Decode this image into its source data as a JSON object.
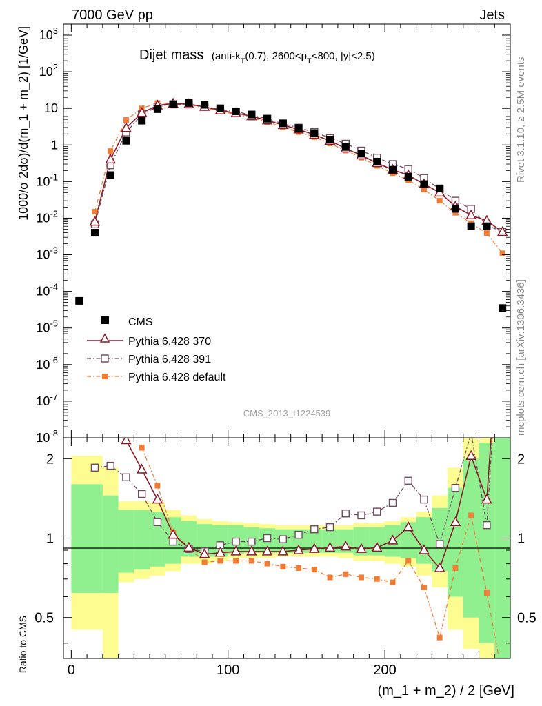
{
  "header": {
    "left": "7000 GeV pp",
    "right": "Jets"
  },
  "side_labels": {
    "rivet": "Rivet 3.1.10, ≥ 2.5M events",
    "mcplots": "mcplots.cern.ch [arXiv:1306.3436]"
  },
  "watermark": "CMS_2013_I1224539",
  "colors": {
    "cms": "#000000",
    "p370": "#8b1a2b",
    "p391": "#6e4a5e",
    "pdefault": "#f47b34",
    "band_inner": "#90f090",
    "band_outer": "#fcfc90"
  },
  "chart_data": [
    {
      "type": "scatter",
      "title": "Dijet mass",
      "title_note": "(anti-k_T(0.7), 2600<p_T<800, |y|<2.5)",
      "ylabel": "1000/σ 2dσ)/d(m_1 + m_2) [1/GeV]",
      "xlabel": "",
      "xlim": [
        -5,
        280
      ],
      "ylim": [
        1e-08,
        2000
      ],
      "log_y": true,
      "y_ticks": [
        "10^3",
        "10^2",
        "10",
        "1",
        "10^-1",
        "10^-2",
        "10^-3",
        "10^-4",
        "10^-5",
        "10^-6",
        "10^-7",
        "10^-8"
      ],
      "legend": [
        "CMS",
        "Pythia 6.428 370",
        "Pythia 6.428 391",
        "Pythia 6.428 default"
      ],
      "legend_position": "lower-left",
      "x": [
        5,
        15,
        25,
        35,
        45,
        55,
        65,
        75,
        85,
        95,
        105,
        115,
        125,
        135,
        145,
        155,
        165,
        175,
        185,
        195,
        205,
        215,
        225,
        235,
        245,
        255,
        265,
        275
      ],
      "series": [
        {
          "name": "CMS",
          "values": [
            5.5e-05,
            0.004,
            0.15,
            1.3,
            4.6,
            9.5,
            13,
            14,
            12.5,
            10,
            8.3,
            6.8,
            5.2,
            3.9,
            2.9,
            2.1,
            1.4,
            0.88,
            0.58,
            0.35,
            0.21,
            0.135,
            0.085,
            0.065,
            0.018,
            0.006,
            0.006,
            3.5e-05
          ]
        },
        {
          "name": "Pythia 6.428 370",
          "values": [
            null,
            0.008,
            0.4,
            2.9,
            7.5,
            12,
            13.5,
            13,
            11,
            8.8,
            7.4,
            6.1,
            4.7,
            3.5,
            2.65,
            1.9,
            1.3,
            0.8,
            0.52,
            0.32,
            0.21,
            0.15,
            0.085,
            0.05,
            0.021,
            0.012,
            0.0085,
            0.0042
          ]
        },
        {
          "name": "Pythia 6.428 391",
          "values": [
            null,
            0.0068,
            0.28,
            2.2,
            6.8,
            11,
            12.8,
            12.8,
            11.1,
            9.4,
            8.1,
            6.6,
            5.2,
            3.8,
            2.95,
            2.25,
            1.55,
            1.08,
            0.7,
            0.45,
            0.3,
            0.22,
            0.125,
            0.062,
            0.03,
            0.018,
            0.0065,
            0.0042
          ]
        },
        {
          "name": "Pythia 6.428 default",
          "values": [
            null,
            0.015,
            0.68,
            4.8,
            10,
            14,
            13.5,
            12.8,
            10.2,
            8.2,
            6.9,
            5.6,
            4.2,
            3.05,
            2.25,
            1.65,
            1.1,
            0.7,
            0.45,
            0.27,
            0.17,
            0.11,
            0.06,
            0.03,
            0.014,
            0.0073,
            0.0039,
            0.0011
          ]
        }
      ]
    },
    {
      "type": "line",
      "title": "",
      "xlabel": "(m_1 + m_2) / 2 [GeV]",
      "ylabel": "Ratio to CMS",
      "xlim": [
        -5,
        280
      ],
      "ylim": [
        0.35,
        2.4
      ],
      "log_y": true,
      "x_ticks": [
        0,
        100,
        200
      ],
      "y_ticks": [
        0.5,
        1,
        2
      ],
      "reference_line": 1,
      "x": [
        15,
        25,
        35,
        45,
        55,
        65,
        75,
        85,
        95,
        105,
        115,
        125,
        135,
        145,
        155,
        165,
        175,
        185,
        195,
        205,
        215,
        225,
        235,
        245,
        255,
        265,
        275
      ],
      "band_edges": [
        0,
        20,
        30,
        40,
        50,
        60,
        70,
        80,
        90,
        100,
        110,
        120,
        130,
        140,
        150,
        160,
        170,
        180,
        190,
        200,
        210,
        220,
        230,
        240,
        250,
        260,
        270,
        280
      ],
      "band_inner": [
        [
          0.62,
          1.6
        ],
        [
          0.62,
          1.45
        ],
        [
          0.74,
          1.28
        ],
        [
          0.76,
          1.28
        ],
        [
          0.78,
          1.26
        ],
        [
          0.8,
          1.2
        ],
        [
          0.85,
          1.16
        ],
        [
          0.85,
          1.13
        ],
        [
          0.85,
          1.12
        ],
        [
          0.87,
          1.12
        ],
        [
          0.88,
          1.1
        ],
        [
          0.88,
          1.09
        ],
        [
          0.88,
          1.08
        ],
        [
          0.88,
          1.08
        ],
        [
          0.88,
          1.08
        ],
        [
          0.88,
          1.08
        ],
        [
          0.88,
          1.08
        ],
        [
          0.86,
          1.1
        ],
        [
          0.86,
          1.1
        ],
        [
          0.85,
          1.12
        ],
        [
          0.84,
          1.15
        ],
        [
          0.8,
          1.2
        ],
        [
          0.75,
          1.3
        ],
        [
          0.6,
          1.55
        ],
        [
          0.5,
          2.0
        ],
        [
          0.4,
          2.3
        ],
        [
          0.35,
          2.4
        ]
      ],
      "band_outer": [
        [
          0.45,
          2.05
        ],
        [
          0.35,
          1.85
        ],
        [
          0.68,
          1.38
        ],
        [
          0.7,
          1.38
        ],
        [
          0.72,
          1.36
        ],
        [
          0.75,
          1.28
        ],
        [
          0.8,
          1.22
        ],
        [
          0.8,
          1.18
        ],
        [
          0.82,
          1.16
        ],
        [
          0.84,
          1.15
        ],
        [
          0.84,
          1.14
        ],
        [
          0.84,
          1.13
        ],
        [
          0.85,
          1.12
        ],
        [
          0.85,
          1.12
        ],
        [
          0.85,
          1.12
        ],
        [
          0.85,
          1.12
        ],
        [
          0.84,
          1.12
        ],
        [
          0.82,
          1.14
        ],
        [
          0.82,
          1.14
        ],
        [
          0.8,
          1.16
        ],
        [
          0.78,
          1.2
        ],
        [
          0.72,
          1.26
        ],
        [
          0.65,
          1.45
        ],
        [
          0.45,
          1.85
        ],
        [
          0.38,
          2.4
        ],
        [
          0.35,
          2.4
        ],
        [
          0.35,
          2.4
        ]
      ],
      "series": [
        {
          "name": "Pythia 6.428 370",
          "values": [
            null,
            null,
            2.35,
            1.82,
            1.4,
            1.03,
            0.92,
            0.87,
            0.88,
            0.89,
            0.89,
            0.89,
            0.89,
            0.9,
            0.91,
            0.92,
            0.93,
            0.91,
            0.92,
            0.98,
            1.1,
            0.9,
            0.77,
            1.15,
            2.05,
            1.4,
            10.0
          ]
        },
        {
          "name": "Pythia 6.428 391",
          "values": [
            1.85,
            1.88,
            1.7,
            1.47,
            1.15,
            0.97,
            0.91,
            0.89,
            0.94,
            0.97,
            0.97,
            1.0,
            0.99,
            1.03,
            1.08,
            1.1,
            1.24,
            1.22,
            1.26,
            1.36,
            1.65,
            1.4,
            0.95,
            1.55,
            2.5,
            1.12,
            10.0
          ]
        },
        {
          "name": "Pythia 6.428 default",
          "values": [
            null,
            null,
            null,
            2.2,
            1.58,
            1.05,
            0.92,
            0.81,
            0.82,
            0.82,
            0.82,
            0.8,
            0.78,
            0.77,
            0.76,
            0.71,
            0.73,
            0.71,
            0.7,
            0.68,
            0.82,
            0.65,
            0.42,
            0.77,
            1.22,
            0.62,
            0.3
          ]
        }
      ]
    }
  ]
}
